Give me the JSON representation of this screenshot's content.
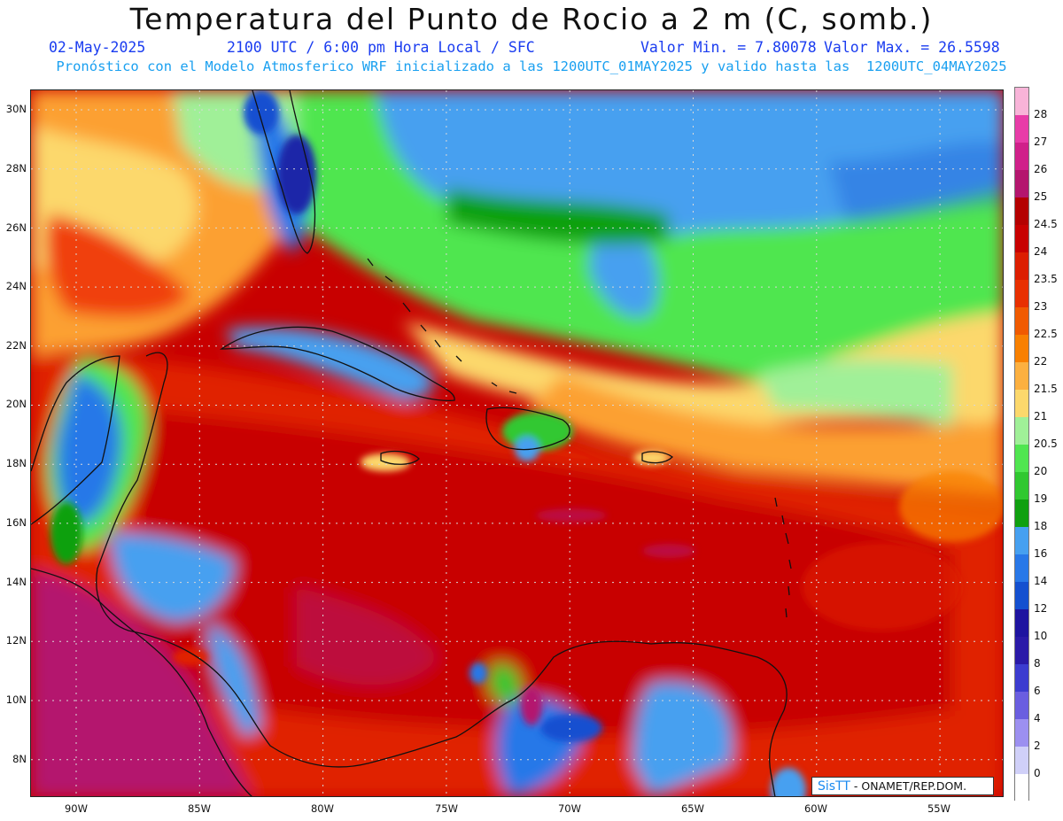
{
  "header": {
    "title": "Temperatura del Punto de Rocio a 2 m (C, somb.)",
    "date": "02-May-2025",
    "time_info": "2100 UTC / 6:00 pm Hora Local / SFC",
    "value_min": "Valor Min. = 7.80078",
    "value_max": "Valor Max. = 26.5598",
    "model_info": "Pronóstico con el Modelo Atmosferico WRF inicializado a las 1200UTC_01MAY2025 y valido hasta las  1200UTC_04MAY2025"
  },
  "map": {
    "lat_labels": [
      "30N",
      "28N",
      "26N",
      "24N",
      "22N",
      "20N",
      "18N",
      "16N",
      "14N",
      "12N",
      "10N",
      "8N"
    ],
    "lon_labels": [
      "90W",
      "85W",
      "80W",
      "75W",
      "70W",
      "65W",
      "60W",
      "55W"
    ],
    "colors": {
      "magenta": "#b4166e",
      "crimson": "#c80000",
      "red": "#e02000",
      "orange_red": "#f04010",
      "orange": "#f88000",
      "orange_light": "#fca030",
      "yellow": "#fcd86c",
      "green_light": "#a0f098",
      "green": "#50e650",
      "green_mid": "#30c830",
      "green_dark": "#10a010",
      "blue_light": "#46a0f0",
      "blue": "#2878e8",
      "blue_dark": "#1450d0",
      "navy": "#1e28a8",
      "coast": "#111111",
      "grid": "#dddddd"
    }
  },
  "legend": {
    "levels": [
      "28",
      "27",
      "26",
      "25",
      "24.5",
      "24",
      "23.5",
      "23",
      "22.5",
      "22",
      "21.5",
      "21",
      "20.5",
      "20",
      "19",
      "18",
      "16",
      "14",
      "12",
      "10",
      "8",
      "6",
      "4",
      "2",
      "0"
    ],
    "colors": [
      "#f8b4d8",
      "#e83ca8",
      "#d0208a",
      "#b4166e",
      "#b40000",
      "#c80000",
      "#dc1e00",
      "#e83000",
      "#f05a00",
      "#f88000",
      "#fcb040",
      "#fcd86c",
      "#a0f098",
      "#50e650",
      "#30c830",
      "#10a010",
      "#46a0f0",
      "#2878e8",
      "#1450d0",
      "#1e14a0",
      "#2a1aa8",
      "#3c3cd0",
      "#6a5ee0",
      "#9c90f0",
      "#d0d0f8",
      "#ffffff"
    ]
  },
  "credit": {
    "brand": "SisTT",
    "text": "- ONAMET/REP.DOM."
  }
}
